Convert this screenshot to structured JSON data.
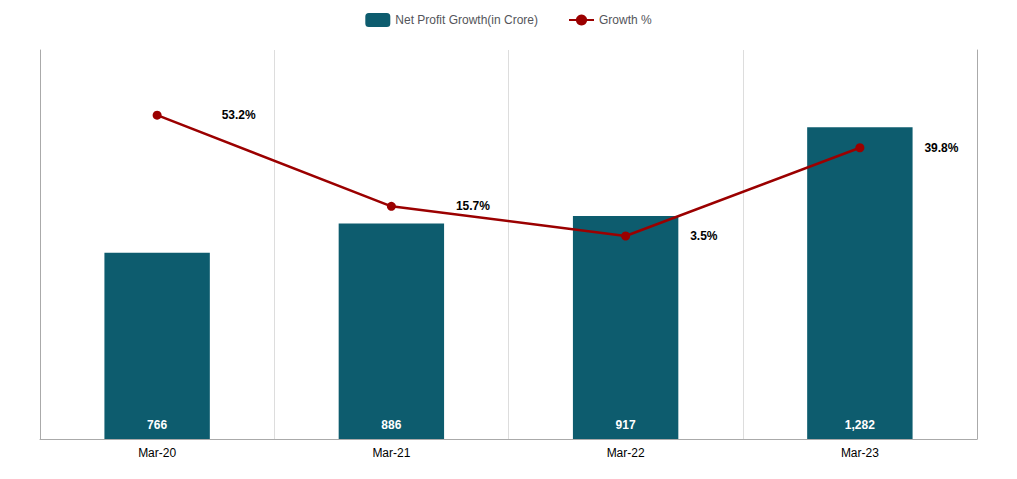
{
  "chart_data": {
    "type": "bar",
    "categories": [
      "Mar-20",
      "Mar-21",
      "Mar-22",
      "Mar-23"
    ],
    "series": [
      {
        "name": "Net Profit Growth(in Crore)",
        "type": "bar",
        "color": "#0d5c6e",
        "values": [
          766,
          886,
          917,
          1282
        ],
        "value_labels": [
          "766",
          "886",
          "917",
          "1,282"
        ]
      },
      {
        "name": "Growth %",
        "type": "line",
        "axis": "y2",
        "color": "#9b0000",
        "marker": "circle",
        "line_style": "solid",
        "values": [
          53.2,
          15.7,
          3.5,
          39.8
        ],
        "value_labels": [
          "53.2%",
          "15.7%",
          "3.5%",
          "39.8%"
        ]
      }
    ],
    "ylim": [
      0,
      1600
    ],
    "y2lim": [
      -80,
      80
    ],
    "data_labels": true,
    "tick_labels": "x",
    "grid": true,
    "legend": "top"
  }
}
